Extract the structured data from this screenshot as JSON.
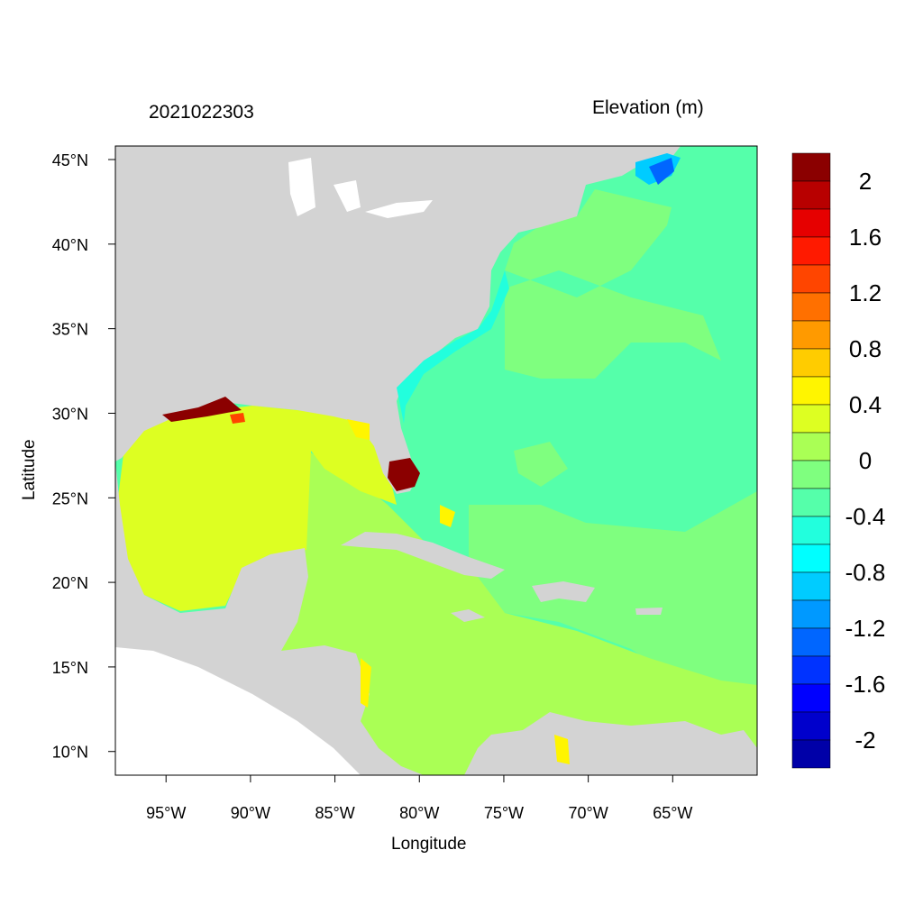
{
  "title_left": "2021022303",
  "title_right": "Elevation (m)",
  "chart_data": {
    "type": "heatmap",
    "title": "2021022303",
    "colorbar_title": "Elevation (m)",
    "xlabel": "Longitude",
    "ylabel": "Latitude",
    "xlim": [
      -98,
      -60
    ],
    "ylim": [
      8.6,
      45.8
    ],
    "x_ticks": [
      -95,
      -90,
      -85,
      -80,
      -75,
      -70,
      -65
    ],
    "x_tick_labels": [
      "95°W",
      "90°W",
      "85°W",
      "80°W",
      "75°W",
      "70°W",
      "65°W"
    ],
    "y_ticks": [
      10,
      15,
      20,
      25,
      30,
      35,
      40,
      45
    ],
    "y_tick_labels": [
      "10°N",
      "15°N",
      "20°N",
      "25°N",
      "30°N",
      "35°N",
      "40°N",
      "45°N"
    ],
    "colorbar": {
      "levels_top_to_bottom": [
        2.2,
        2.0,
        1.8,
        1.6,
        1.4,
        1.2,
        1.0,
        0.8,
        0.6,
        0.4,
        0.2,
        0.0,
        -0.2,
        -0.4,
        -0.6,
        -0.8,
        -1.0,
        -1.2,
        -1.4,
        -1.6,
        -1.8,
        -2.0,
        -2.2
      ],
      "colors_top_to_bottom": [
        "#8b0000",
        "#b80000",
        "#e60000",
        "#ff1a00",
        "#ff4500",
        "#ff7000",
        "#ff9a00",
        "#ffcc00",
        "#fff500",
        "#ddff22",
        "#aaff55",
        "#7fff7f",
        "#55ffaa",
        "#22ffdd",
        "#00ffff",
        "#00ccff",
        "#0099ff",
        "#0066ff",
        "#0033ff",
        "#0000ff",
        "#0000cc",
        "#0000a8"
      ],
      "labels": [
        {
          "value": 2,
          "text": "2"
        },
        {
          "value": 1.6,
          "text": "1.6"
        },
        {
          "value": 1.2,
          "text": "1.2"
        },
        {
          "value": 0.8,
          "text": "0.8"
        },
        {
          "value": 0.4,
          "text": "0.4"
        },
        {
          "value": 0,
          "text": "0"
        },
        {
          "value": -0.4,
          "text": "-0.4"
        },
        {
          "value": -0.8,
          "text": "-0.8"
        },
        {
          "value": -1.2,
          "text": "-1.2"
        },
        {
          "value": -1.6,
          "text": "-1.6"
        },
        {
          "value": -2,
          "text": "-2"
        }
      ]
    },
    "land_color": "#d3d3d3",
    "nodata_color": "#ffffff"
  }
}
